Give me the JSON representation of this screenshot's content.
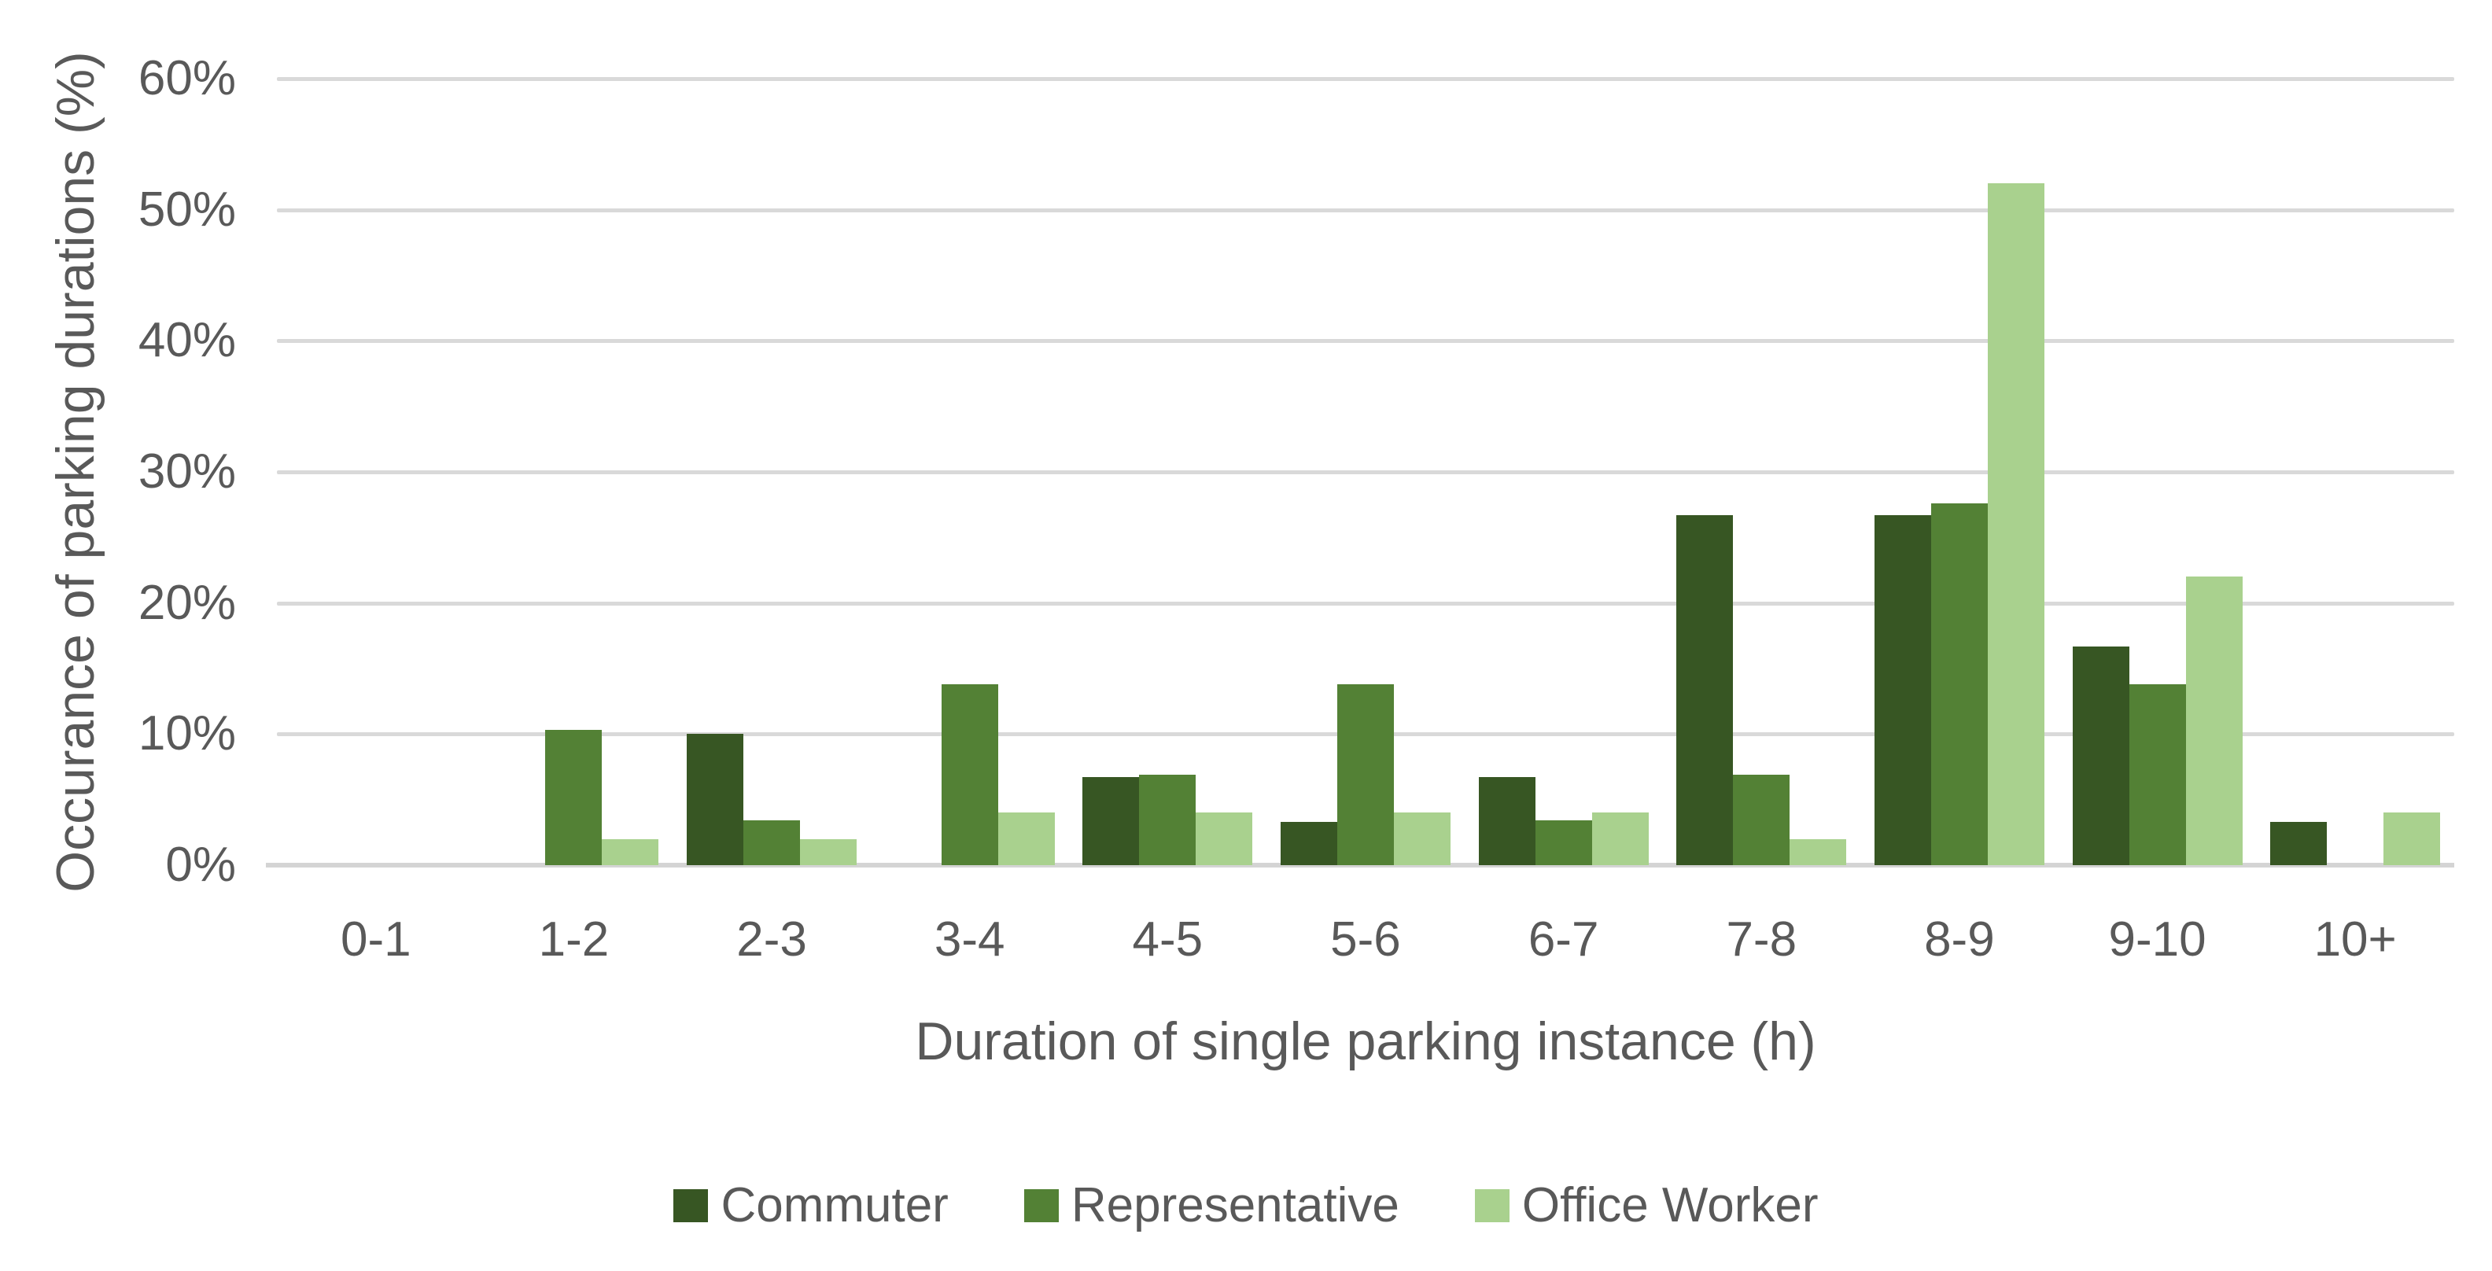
{
  "chart_data": {
    "type": "bar",
    "title": "",
    "xlabel": "Duration of single parking instance (h)",
    "ylabel": "Occurance of parking durations (%)",
    "categories": [
      "0-1",
      "1-2",
      "2-3",
      "3-4",
      "4-5",
      "5-6",
      "6-7",
      "7-8",
      "8-9",
      "9-10",
      "10+"
    ],
    "series": [
      {
        "name": "Commuter",
        "color": "#375623",
        "values": [
          0,
          0,
          10,
          0,
          6.7,
          3.3,
          6.7,
          26.7,
          26.7,
          16.7,
          3.3
        ]
      },
      {
        "name": "Representative",
        "color": "#538135",
        "values": [
          0,
          10.3,
          3.4,
          13.8,
          6.9,
          13.8,
          3.4,
          6.9,
          27.6,
          13.8,
          0
        ]
      },
      {
        "name": "Office Worker",
        "color": "#A9D18E",
        "values": [
          0,
          2,
          2,
          4,
          4,
          4,
          4,
          2,
          52,
          22,
          4
        ]
      }
    ],
    "ylim": [
      0,
      60
    ],
    "ytick_step": 10,
    "ytick_labels": [
      "0%",
      "10%",
      "20%",
      "30%",
      "40%",
      "50%",
      "60%"
    ],
    "grid": "horizontal-only",
    "legend_position": "bottom"
  },
  "colors": {
    "text": "#595959",
    "gridline": "#D9D9D9",
    "axis_line": "#D4D4D4",
    "background": "#FFFFFF"
  }
}
